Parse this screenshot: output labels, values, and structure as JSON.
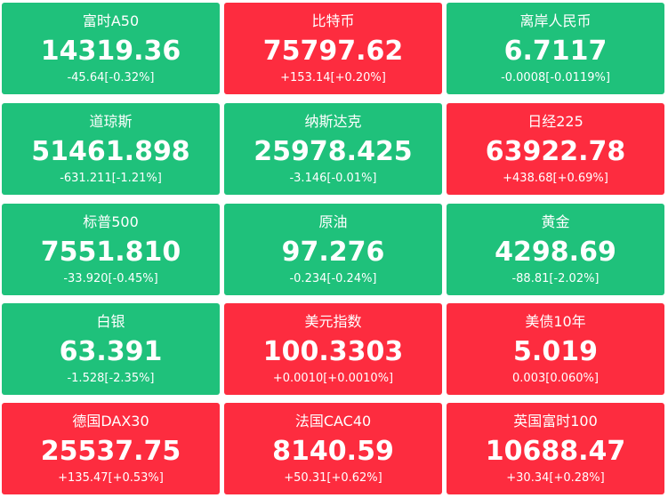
{
  "tiles": [
    {
      "name": "富时A50",
      "price": "14319.36",
      "change": "-45.64[-0.32%]",
      "color": "#1fc17b"
    },
    {
      "name": "比特币",
      "price": "75797.62",
      "change": "+153.14[+0.20%]",
      "color": "#fd2c3f"
    },
    {
      "name": "离岸人民币",
      "price": "6.7117",
      "change": "-0.0008[-0.0119%]",
      "color": "#1fc17b"
    },
    {
      "name": "道琼斯",
      "price": "51461.898",
      "change": "-631.211[-1.21%]",
      "color": "#1fc17b"
    },
    {
      "name": "纳斯达克",
      "price": "25978.425",
      "change": "-3.146[-0.01%]",
      "color": "#1fc17b"
    },
    {
      "name": "日经225",
      "price": "63922.78",
      "change": "+438.68[+0.69%]",
      "color": "#fd2c3f"
    },
    {
      "name": "标普500",
      "price": "7551.810",
      "change": "-33.920[-0.45%]",
      "color": "#1fc17b"
    },
    {
      "name": "原油",
      "price": "97.276",
      "change": "-0.234[-0.24%]",
      "color": "#1fc17b"
    },
    {
      "name": "黄金",
      "price": "4298.69",
      "change": "-88.81[-2.02%]",
      "color": "#1fc17b"
    },
    {
      "name": "白银",
      "price": "63.391",
      "change": "-1.528[-2.35%]",
      "color": "#1fc17b"
    },
    {
      "name": "美元指数",
      "price": "100.3303",
      "change": "+0.0010[+0.0010%]",
      "color": "#fd2c3f"
    },
    {
      "name": "美债10年",
      "price": "5.019",
      "change": "0.003[0.060%]",
      "color": "#fd2c3f"
    },
    {
      "name": "德国DAX30",
      "price": "25537.75",
      "change": "+135.47[+0.53%]",
      "color": "#fd2c3f"
    },
    {
      "name": "法国CAC40",
      "price": "8140.59",
      "change": "+50.31[+0.62%]",
      "color": "#fd2c3f"
    },
    {
      "name": "英国富时100",
      "price": "10688.47",
      "change": "+30.34[+0.28%]",
      "color": "#fd2c3f"
    }
  ]
}
